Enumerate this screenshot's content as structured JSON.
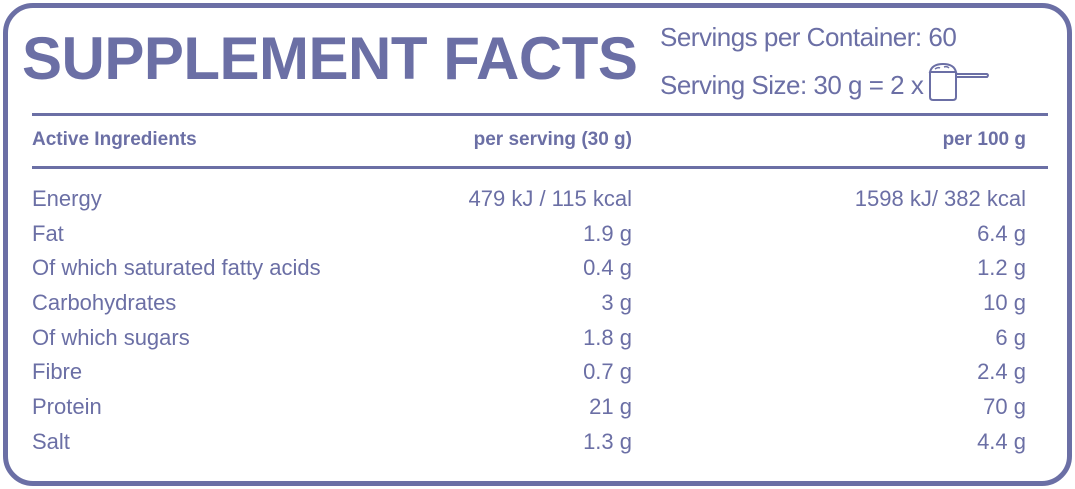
{
  "title": "SUPPLEMENT FACTS",
  "servings_per_container": "Servings per Container: 60",
  "serving_size": "Serving Size: 30 g = 2 x",
  "serving_icon": "scoop-icon",
  "accent_color": "#6b6fa5",
  "table": {
    "headers": [
      "Active Ingredients",
      "per serving (30 g)",
      "per 100 g"
    ],
    "rows": [
      [
        "Energy",
        "479 kJ / 115 kcal",
        "1598 kJ/ 382 kcal"
      ],
      [
        "Fat",
        "1.9 g",
        "6.4 g"
      ],
      [
        "Of which saturated fatty acids",
        "0.4 g",
        "1.2 g"
      ],
      [
        "Carbohydrates",
        "3 g",
        "10 g"
      ],
      [
        "Of which sugars",
        "1.8 g",
        "6 g"
      ],
      [
        "Fibre",
        "0.7 g",
        "2.4 g"
      ],
      [
        "Protein",
        "21 g",
        "70 g"
      ],
      [
        "Salt",
        "1.3 g",
        "4.4 g"
      ]
    ]
  }
}
